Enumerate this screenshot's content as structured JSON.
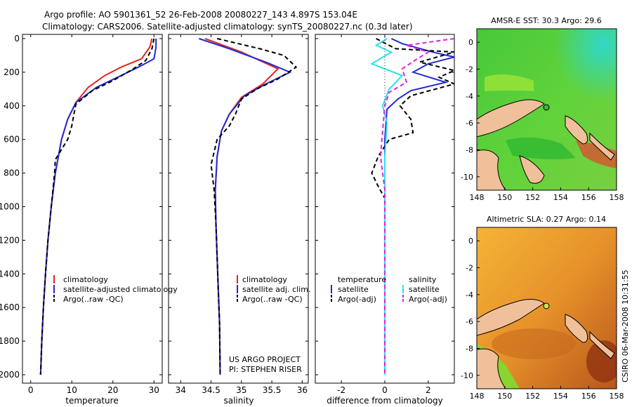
{
  "header": {
    "title_line1": "Argo profile: AO 5901361_52 26-Feb-2008 20080227_143 4.897S 153.04E",
    "title_line2": "Climatology: CARS2006. Satellite-adjusted climatology: synTS_20080227.nc (0.3d later)"
  },
  "credits": {
    "project": "US ARGO PROJECT",
    "pi": "PI: STEPHEN RISER",
    "timestamp": "CSIRO 06-Mar-2008 10:31:55"
  },
  "colors": {
    "climatology": "#e8231e",
    "satellite": "#1f2bd6",
    "argo": "#000000",
    "sal_sat": "#26e4ee",
    "sal_argo": "#e020d8",
    "land": "#f0c09a"
  },
  "chart_data": [
    {
      "type": "line",
      "xlabel": "temperature",
      "ylabel": "",
      "xlim": [
        -2,
        32
      ],
      "ylim": [
        2050,
        0
      ],
      "xticks": [
        "0",
        "10",
        "20",
        "30"
      ],
      "xtick_values": [
        0,
        10,
        20,
        30
      ],
      "yticks": [
        "0",
        "200",
        "400",
        "600",
        "800",
        "1000",
        "1200",
        "1400",
        "1600",
        "1800",
        "2000"
      ],
      "ytick_values": [
        0,
        200,
        400,
        600,
        800,
        1000,
        1200,
        1400,
        1600,
        1800,
        2000
      ],
      "legend": [
        "climatology",
        "satellite-adjusted climatology",
        "Argo(..raw -QC)"
      ],
      "series": [
        {
          "name": "climatology",
          "color": "#e8231e",
          "dash": "",
          "points": [
            [
              29.5,
              0
            ],
            [
              29,
              50
            ],
            [
              27,
              120
            ],
            [
              22,
              170
            ],
            [
              18,
              220
            ],
            [
              14,
              290
            ],
            [
              11,
              380
            ],
            [
              9,
              480
            ],
            [
              7.5,
              600
            ],
            [
              6,
              800
            ],
            [
              5,
              1000
            ],
            [
              4.2,
              1200
            ],
            [
              3.6,
              1400
            ],
            [
              3.1,
              1600
            ],
            [
              2.7,
              1800
            ],
            [
              2.4,
              2000
            ]
          ]
        },
        {
          "name": "satellite-adjusted climatology",
          "color": "#1f2bd6",
          "dash": "",
          "points": [
            [
              30.5,
              0
            ],
            [
              30.5,
              50
            ],
            [
              30,
              120
            ],
            [
              27,
              160
            ],
            [
              22,
              220
            ],
            [
              16,
              290
            ],
            [
              11,
              380
            ],
            [
              9,
              480
            ],
            [
              7.5,
              600
            ],
            [
              6,
              800
            ],
            [
              5,
              1000
            ],
            [
              4.2,
              1200
            ],
            [
              3.6,
              1400
            ],
            [
              3.1,
              1600
            ],
            [
              2.7,
              1800
            ],
            [
              2.4,
              2000
            ]
          ]
        },
        {
          "name": "Argo(..raw -QC)",
          "color": "#000000",
          "dash": "6,4",
          "points": [
            [
              30,
              0
            ],
            [
              29.5,
              60
            ],
            [
              28,
              130
            ],
            [
              25,
              180
            ],
            [
              20,
              250
            ],
            [
              15,
              310
            ],
            [
              11,
              390
            ],
            [
              10.5,
              450
            ],
            [
              10,
              520
            ],
            [
              9,
              600
            ],
            [
              6,
              720
            ],
            [
              5.8,
              800
            ],
            [
              5,
              1000
            ],
            [
              4.2,
              1200
            ],
            [
              3.6,
              1400
            ],
            [
              3.1,
              1600
            ],
            [
              2.7,
              1800
            ],
            [
              2.4,
              2000
            ]
          ]
        }
      ]
    },
    {
      "type": "line",
      "xlabel": "salinity",
      "ylabel": "",
      "xlim": [
        33.8,
        36.1
      ],
      "ylim": [
        2050,
        0
      ],
      "xticks": [
        "34",
        "34.5",
        "35",
        "35.5",
        "36"
      ],
      "xtick_values": [
        34,
        34.5,
        35,
        35.5,
        36
      ],
      "legend": [
        "climatology",
        "satellite adj. clim.",
        "Argo(..raw -QC)"
      ],
      "series": [
        {
          "name": "climatology",
          "color": "#e8231e",
          "dash": "",
          "points": [
            [
              34.4,
              0
            ],
            [
              35.0,
              80
            ],
            [
              35.6,
              180
            ],
            [
              35.35,
              270
            ],
            [
              35.0,
              350
            ],
            [
              34.8,
              450
            ],
            [
              34.67,
              550
            ],
            [
              34.6,
              700
            ],
            [
              34.57,
              900
            ],
            [
              34.58,
              1100
            ],
            [
              34.6,
              1300
            ],
            [
              34.62,
              1500
            ],
            [
              34.64,
              1700
            ],
            [
              34.65,
              2000
            ]
          ]
        },
        {
          "name": "satellite adj. clim.",
          "color": "#1f2bd6",
          "dash": "",
          "points": [
            [
              34.3,
              0
            ],
            [
              34.8,
              60
            ],
            [
              35.4,
              140
            ],
            [
              35.8,
              200
            ],
            [
              35.4,
              270
            ],
            [
              35.05,
              340
            ],
            [
              34.8,
              450
            ],
            [
              34.67,
              550
            ],
            [
              34.6,
              700
            ],
            [
              34.57,
              900
            ],
            [
              34.58,
              1100
            ],
            [
              34.6,
              1300
            ],
            [
              34.62,
              1500
            ],
            [
              34.64,
              1700
            ],
            [
              34.65,
              2000
            ]
          ]
        },
        {
          "name": "Argo(..raw -QC)",
          "color": "#000000",
          "dash": "6,4",
          "points": [
            [
              34.6,
              0
            ],
            [
              35.3,
              60
            ],
            [
              35.7,
              100
            ],
            [
              35.9,
              170
            ],
            [
              35.6,
              240
            ],
            [
              35.25,
              300
            ],
            [
              35.0,
              360
            ],
            [
              34.9,
              450
            ],
            [
              34.8,
              520
            ],
            [
              34.6,
              600
            ],
            [
              34.5,
              750
            ],
            [
              34.55,
              900
            ],
            [
              34.58,
              1100
            ],
            [
              34.6,
              1300
            ],
            [
              34.62,
              1500
            ],
            [
              34.64,
              1700
            ],
            [
              34.65,
              2000
            ]
          ]
        }
      ]
    },
    {
      "type": "line",
      "xlabel": "difference from climatology",
      "ylabel": "",
      "xlim": [
        -3.2,
        3.2
      ],
      "ylim": [
        2050,
        0
      ],
      "xticks": [
        "-2",
        "0",
        "2"
      ],
      "xtick_values": [
        -2,
        0,
        2
      ],
      "legend_left_title": "temperature",
      "legend_right_title": "salinity",
      "legend": [
        "satellite",
        "Argo(-adj)",
        "satellite",
        "Argo(-adj)"
      ],
      "series": [
        {
          "name": "temperature satellite",
          "color": "#1f2bd6",
          "dash": "",
          "points": [
            [
              0.3,
              0
            ],
            [
              0.8,
              30
            ],
            [
              2.2,
              80
            ],
            [
              3.2,
              110
            ],
            [
              2.0,
              150
            ],
            [
              1.3,
              200
            ],
            [
              2.8,
              260
            ],
            [
              1.2,
              310
            ],
            [
              0.6,
              360
            ],
            [
              0.1,
              420
            ],
            [
              0,
              600
            ],
            [
              0,
              2000
            ]
          ]
        },
        {
          "name": "temperature Argo(-adj)",
          "color": "#000000",
          "dash": "6,4",
          "points": [
            [
              -0.4,
              0
            ],
            [
              0.5,
              60
            ],
            [
              3.2,
              80
            ],
            [
              1.6,
              140
            ],
            [
              3.2,
              190
            ],
            [
              2.5,
              230
            ],
            [
              3.2,
              270
            ],
            [
              1.2,
              340
            ],
            [
              0.7,
              400
            ],
            [
              1.2,
              480
            ],
            [
              1.3,
              560
            ],
            [
              0.2,
              600
            ],
            [
              -0.3,
              700
            ],
            [
              -0.6,
              800
            ],
            [
              -0.3,
              880
            ],
            [
              0,
              950
            ],
            [
              0,
              2000
            ]
          ]
        },
        {
          "name": "salinity satellite",
          "color": "#26e4ee",
          "dash": "",
          "points": [
            [
              0.1,
              0
            ],
            [
              -0.4,
              40
            ],
            [
              0.3,
              80
            ],
            [
              -0.6,
              150
            ],
            [
              0.8,
              220
            ],
            [
              0.2,
              300
            ],
            [
              -0.1,
              400
            ],
            [
              0.1,
              500
            ],
            [
              0,
              700
            ],
            [
              0,
              2000
            ]
          ]
        },
        {
          "name": "salinity Argo(-adj)",
          "color": "#e020d8",
          "dash": "6,4",
          "points": [
            [
              3.2,
              0
            ],
            [
              1.0,
              40
            ],
            [
              2.0,
              80
            ],
            [
              1.5,
              120
            ],
            [
              0.8,
              180
            ],
            [
              1.0,
              260
            ],
            [
              0.2,
              320
            ],
            [
              0,
              400
            ],
            [
              -0.2,
              700
            ],
            [
              -0.1,
              800
            ],
            [
              0,
              900
            ],
            [
              0,
              2000
            ]
          ]
        }
      ]
    },
    {
      "type": "heatmap",
      "title": "AMSR-E SST: 30.3 Argo: 29.6",
      "xlim": [
        148,
        158
      ],
      "ylim": [
        -11,
        1
      ],
      "xticks": [
        "148",
        "150",
        "152",
        "154",
        "156",
        "158"
      ],
      "xtick_values": [
        148,
        150,
        152,
        154,
        156,
        158
      ],
      "yticks": [
        "0",
        "-2",
        "-4",
        "-6",
        "-8",
        "-10"
      ],
      "ytick_values": [
        0,
        -2,
        -4,
        -6,
        -8,
        -10
      ],
      "float_position": [
        153.04,
        -4.897
      ]
    },
    {
      "type": "heatmap",
      "title": "Altimetric SLA: 0.27 Argo: 0.14",
      "xlim": [
        148,
        158
      ],
      "ylim": [
        -11,
        1
      ],
      "xticks": [
        "148",
        "150",
        "152",
        "154",
        "156",
        "158"
      ],
      "xtick_values": [
        148,
        150,
        152,
        154,
        156,
        158
      ],
      "yticks": [
        "0",
        "-2",
        "-4",
        "-6",
        "-8",
        "-10"
      ],
      "ytick_values": [
        0,
        -2,
        -4,
        -6,
        -8,
        -10
      ],
      "float_position": [
        153.04,
        -4.897
      ]
    }
  ]
}
